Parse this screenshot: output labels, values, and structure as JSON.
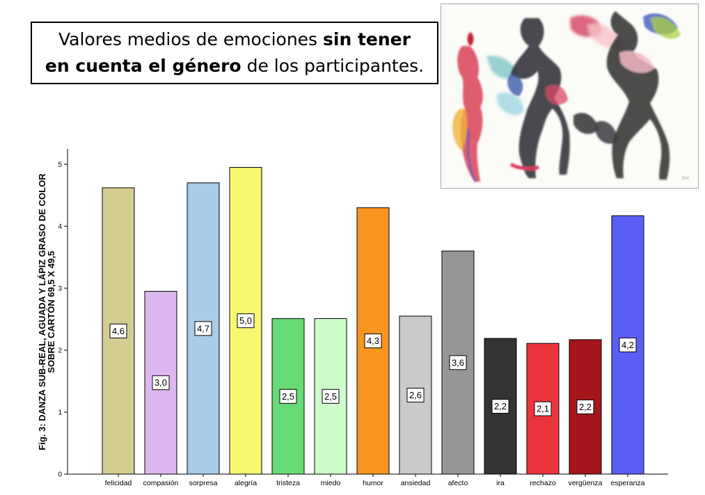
{
  "slide": {
    "title_part1": "Valores medios de emociones ",
    "title_bold1": "sin tener",
    "title_bold2": "en cuenta el género",
    "title_part2": " de los participantes."
  },
  "chart_data": {
    "type": "bar",
    "title": "",
    "xlabel": "",
    "ylabel_line1": "Fig. 3: DANZA SUB-REAL, AGUADA Y LÁPIZ GRASO DE COLOR",
    "ylabel_line2": "SOBRE CARTÓN 69,5 X 49,5",
    "ylim": [
      0,
      5.25
    ],
    "yticks": [
      0,
      1,
      2,
      3,
      4,
      5
    ],
    "grid": false,
    "categories": [
      "felicidad",
      "compasión",
      "sorpresa",
      "alegría",
      "tristeza",
      "miedo",
      "humor",
      "ansiedad",
      "afecto",
      "ira",
      "rechazo",
      "vergüenza",
      "esperanza"
    ],
    "values": [
      4.62,
      2.95,
      4.7,
      4.95,
      2.51,
      2.51,
      4.3,
      2.55,
      3.6,
      2.19,
      2.11,
      2.17,
      4.17
    ],
    "value_labels": [
      "4,6",
      "3,0",
      "4,7",
      "5,0",
      "2,5",
      "2,5",
      "4,3",
      "2,6",
      "3,6",
      "2,2",
      "2,1",
      "2,2",
      "4,2"
    ],
    "colors": [
      "#d3cd92",
      "#dcb6ef",
      "#a8ccea",
      "#f8f771",
      "#67db75",
      "#cdfdcb",
      "#f8961f",
      "#cacaca",
      "#969696",
      "#333333",
      "#ec343c",
      "#a4161c",
      "#5b5ff6"
    ]
  },
  "artwork": {
    "icon": "watercolor-dancers-painting"
  }
}
